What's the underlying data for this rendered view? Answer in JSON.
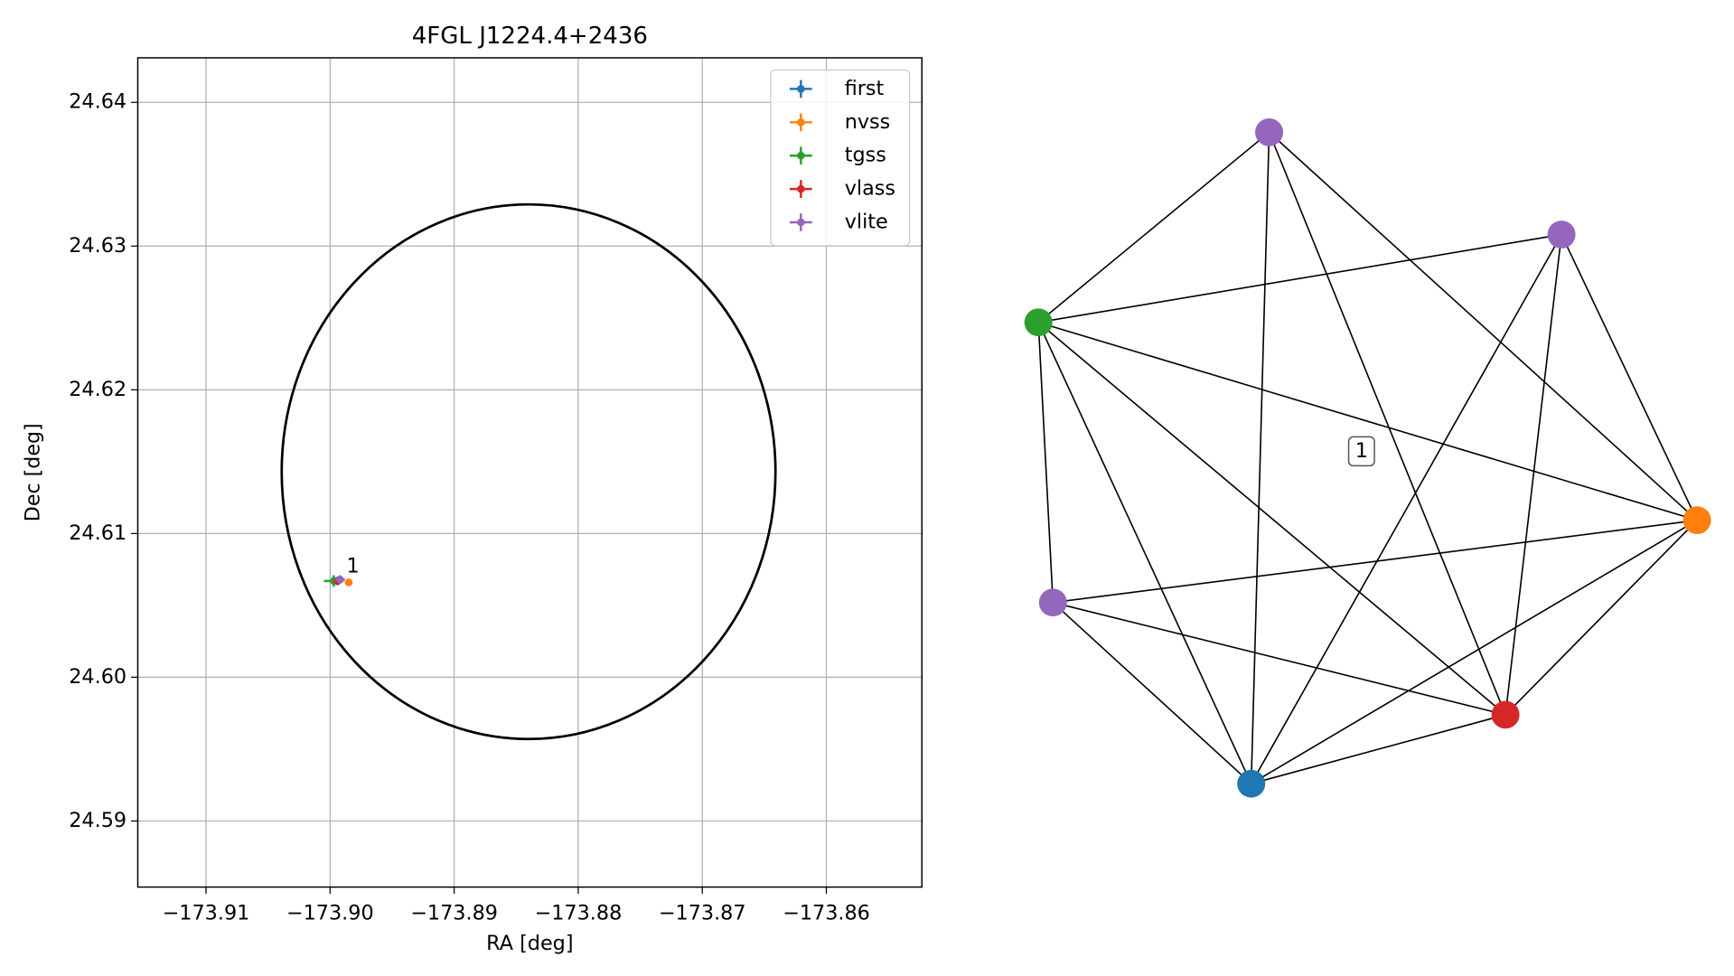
{
  "chart_data": [
    {
      "type": "scatter",
      "title": "4FGL J1224.4+2436",
      "xlabel": "RA [deg]",
      "ylabel": "Dec [deg]",
      "xlim": [
        -173.9155,
        -173.8523
      ],
      "ylim": [
        24.5854,
        24.6431
      ],
      "xticks": [
        {
          "value": -173.91,
          "label": "−173.91"
        },
        {
          "value": -173.9,
          "label": "−173.90"
        },
        {
          "value": -173.89,
          "label": "−173.89"
        },
        {
          "value": -173.88,
          "label": "−173.88"
        },
        {
          "value": -173.87,
          "label": "−173.87"
        },
        {
          "value": -173.86,
          "label": "−173.86"
        }
      ],
      "yticks": [
        24.59,
        {
          "value": 24.6,
          "label": "24.60"
        },
        24.61,
        24.62,
        24.63,
        24.64
      ],
      "grid": true,
      "legend": "upper right",
      "region": {
        "x": -173.884,
        "y": 24.6143,
        "rx": 0.0199,
        "ry": 0.0186,
        "color": "#000000"
      },
      "annotation": "1",
      "series": [
        {
          "name": "first",
          "color": "#1f77b4",
          "x": [
            -173.8994
          ],
          "y": [
            24.6067
          ],
          "xerr": [
            0.0003
          ],
          "yerr": [
            0.0003
          ]
        },
        {
          "name": "nvss",
          "color": "#ff7f0e",
          "x": [
            -173.8985
          ],
          "y": [
            24.6066
          ],
          "xerr": [
            0.0002
          ],
          "yerr": [
            0.0002
          ]
        },
        {
          "name": "tgss",
          "color": "#2ca02c",
          "x": [
            -173.8997
          ],
          "y": [
            24.6067
          ],
          "xerr": [
            0.0008
          ],
          "yerr": [
            0.0004
          ]
        },
        {
          "name": "vlass",
          "color": "#d62728",
          "x": [
            -173.8994
          ],
          "y": [
            24.6067
          ],
          "xerr": [
            0.0001
          ],
          "yerr": [
            0.0001
          ]
        },
        {
          "name": "vlite",
          "color": "#9467bd",
          "x": [
            -173.8992
          ],
          "y": [
            24.6068
          ],
          "xerr": [
            0.0004
          ],
          "yerr": [
            0.0003
          ]
        }
      ]
    },
    {
      "type": "network",
      "label": "1",
      "nodes": [
        {
          "color": "#9467bd"
        },
        {
          "color": "#9467bd"
        },
        {
          "color": "#2ca02c"
        },
        {
          "color": "#ff7f0e"
        },
        {
          "color": "#9467bd"
        },
        {
          "color": "#d62728"
        },
        {
          "color": "#1f77b4"
        }
      ],
      "edges": [
        [
          2,
          0
        ],
        [
          2,
          1
        ],
        [
          2,
          3
        ],
        [
          2,
          4
        ],
        [
          2,
          5
        ],
        [
          2,
          6
        ],
        [
          0,
          6
        ],
        [
          0,
          5
        ],
        [
          0,
          3
        ],
        [
          1,
          6
        ],
        [
          1,
          5
        ],
        [
          1,
          3
        ],
        [
          3,
          4
        ],
        [
          3,
          6
        ],
        [
          3,
          5
        ],
        [
          4,
          5
        ],
        [
          4,
          6
        ],
        [
          5,
          6
        ]
      ]
    }
  ]
}
